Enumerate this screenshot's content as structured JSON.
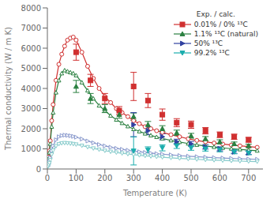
{
  "chart_data": {
    "type": "line",
    "xlabel": "Temperature (K)",
    "ylabel": "Thermal conductivity (W / m K)",
    "xlim": [
      0,
      750
    ],
    "ylim": [
      0,
      8000
    ],
    "xticks": [
      0,
      100,
      200,
      300,
      400,
      500,
      600,
      700
    ],
    "yticks": [
      0,
      1000,
      2000,
      3000,
      4000,
      5000,
      6000,
      7000,
      8000
    ],
    "legend": "upper right",
    "legend_title": "Exp. / calc.",
    "series": [
      {
        "type": "line",
        "color": "#d03030",
        "marker": "circle",
        "x": [
          3,
          5,
          7,
          10,
          15,
          20,
          30,
          40,
          50,
          60,
          70,
          80,
          90,
          100,
          120,
          140,
          160,
          180,
          200,
          220,
          240,
          260,
          280,
          300,
          320,
          340,
          360,
          380,
          400,
          430,
          460,
          490,
          520,
          550,
          580,
          610,
          640,
          670,
          700,
          730
        ],
        "values": [
          350,
          600,
          900,
          1400,
          2400,
          3200,
          4400,
          5200,
          5700,
          6100,
          6400,
          6500,
          6550,
          6400,
          5800,
          5100,
          4500,
          4000,
          3600,
          3300,
          3000,
          2800,
          2600,
          2400,
          2250,
          2100,
          2000,
          1900,
          1820,
          1700,
          1600,
          1500,
          1420,
          1350,
          1290,
          1240,
          1190,
          1150,
          1110,
          1075
        ]
      },
      {
        "type": "line",
        "color": "#2a8040",
        "marker": "triangle-up",
        "x": [
          3,
          5,
          7,
          10,
          15,
          20,
          30,
          40,
          50,
          60,
          70,
          80,
          90,
          100,
          120,
          140,
          160,
          180,
          200,
          220,
          240,
          260,
          280,
          300,
          320,
          340,
          360,
          380,
          400,
          430,
          460,
          490,
          520,
          550,
          580,
          610,
          640,
          670,
          700,
          730
        ],
        "values": [
          320,
          550,
          820,
          1250,
          2100,
          2800,
          3800,
          4400,
          4750,
          4900,
          4850,
          4800,
          4750,
          4650,
          4300,
          3900,
          3500,
          3150,
          2900,
          2650,
          2450,
          2280,
          2120,
          1980,
          1870,
          1760,
          1670,
          1590,
          1520,
          1420,
          1340,
          1265,
          1200,
          1145,
          1095,
          1050,
          1010,
          975,
          940,
          910
        ]
      },
      {
        "type": "line",
        "color": "#8898cc",
        "marker": "triangle-right",
        "x": [
          3,
          5,
          7,
          10,
          15,
          20,
          30,
          40,
          50,
          60,
          70,
          80,
          90,
          100,
          120,
          140,
          160,
          180,
          200,
          220,
          240,
          260,
          280,
          300,
          320,
          340,
          360,
          380,
          400,
          430,
          460,
          490,
          520,
          550,
          580,
          610,
          640,
          670,
          700,
          730
        ],
        "values": [
          150,
          250,
          370,
          560,
          900,
          1150,
          1450,
          1600,
          1660,
          1680,
          1670,
          1650,
          1620,
          1580,
          1490,
          1390,
          1300,
          1215,
          1145,
          1080,
          1025,
          975,
          930,
          890,
          855,
          820,
          790,
          762,
          736,
          700,
          667,
          636,
          610,
          586,
          564,
          544,
          526,
          510,
          495,
          480
        ]
      },
      {
        "type": "line",
        "color": "#88cccc",
        "marker": "triangle-down",
        "x": [
          3,
          5,
          7,
          10,
          15,
          20,
          30,
          40,
          50,
          60,
          70,
          80,
          90,
          100,
          120,
          140,
          160,
          180,
          200,
          220,
          240,
          260,
          280,
          300,
          320,
          340,
          360,
          380,
          400,
          430,
          460,
          490,
          520,
          550,
          580,
          610,
          640,
          670,
          700,
          730
        ],
        "values": [
          130,
          210,
          300,
          450,
          720,
          920,
          1140,
          1240,
          1280,
          1290,
          1280,
          1265,
          1245,
          1220,
          1160,
          1090,
          1025,
          965,
          910,
          862,
          820,
          780,
          745,
          712,
          682,
          655,
          630,
          607,
          586,
          556,
          528,
          503,
          480,
          459,
          440,
          423,
          407,
          393,
          380,
          368
        ]
      },
      {
        "name": "0.01% / 0% ¹³C",
        "type": "scatter",
        "color": "#d03030",
        "marker": "square",
        "x": [
          100,
          150,
          200,
          250,
          300,
          350,
          400,
          450,
          500,
          550,
          600,
          650,
          700
        ],
        "values": [
          5800,
          4400,
          3500,
          2900,
          4100,
          3400,
          2700,
          2300,
          2200,
          1900,
          1700,
          1600,
          1450
        ],
        "error": [
          400,
          300,
          250,
          200,
          700,
          350,
          280,
          200,
          180,
          160,
          140,
          130,
          120
        ]
      },
      {
        "name": "1.1% ¹³C (natural)",
        "type": "scatter",
        "color": "#2a8040",
        "marker": "triangle-up",
        "x": [
          100,
          150,
          200,
          250,
          300,
          350,
          400,
          450,
          500,
          550,
          600,
          650,
          700
        ],
        "values": [
          4100,
          3500,
          3000,
          2700,
          2600,
          2200,
          2000,
          1800,
          1650,
          1500,
          1350,
          1250,
          1150
        ],
        "error": [
          300,
          250,
          200,
          180,
          180,
          160,
          150,
          130,
          120,
          110,
          100,
          90,
          85
        ]
      },
      {
        "name": "50% ¹³C",
        "type": "scatter",
        "color": "#3040a0",
        "marker": "triangle-right",
        "x": [
          300,
          350,
          400,
          450,
          500,
          550,
          600,
          650,
          700
        ],
        "values": [
          2200,
          1900,
          1600,
          1350,
          1250,
          1100,
          1000,
          850,
          800
        ],
        "error": [
          600,
          200,
          150,
          130,
          120,
          110,
          100,
          90,
          85
        ]
      },
      {
        "name": "99.2% ¹³C",
        "type": "scatter",
        "color": "#1aadad",
        "marker": "triangle-down",
        "x": [
          300,
          350,
          400,
          450,
          500,
          550,
          600,
          650,
          700
        ],
        "values": [
          900,
          950,
          1050,
          1150,
          1050,
          1000,
          950,
          850,
          800
        ],
        "error": [
          700,
          150,
          150,
          130,
          120,
          110,
          100,
          90,
          85
        ]
      }
    ]
  }
}
